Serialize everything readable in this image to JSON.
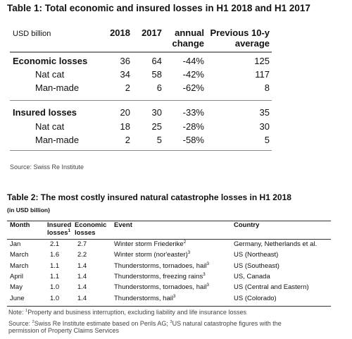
{
  "table1": {
    "title": "Table 1: Total economic and insured losses in H1 2018 and H1 2017",
    "header": [
      "USD billion",
      "2018",
      "2017",
      "annual change",
      "Previous 10-y average"
    ],
    "rows": [
      [
        "Economic losses",
        "36",
        "64",
        "-44%",
        "125"
      ],
      [
        "Nat cat",
        "34",
        "58",
        "-42%",
        "117"
      ],
      [
        "Man-made",
        "2",
        "6",
        "-62%",
        "8"
      ],
      [
        "Insured losses",
        "20",
        "30",
        "-33%",
        "35"
      ],
      [
        "Nat cat",
        "18",
        "25",
        "-28%",
        "30"
      ],
      [
        "Man-made",
        "2",
        "5",
        "-58%",
        "5"
      ]
    ],
    "source": "Source: Swiss Re Institute"
  },
  "table2": {
    "title": "Table 2: The most costly insured natural catastrophe losses in H1 2018",
    "subtitle": "(in USD billion)",
    "header": [
      "Month",
      {
        "text": "Insured losses",
        "sup": "1"
      },
      "Economic losses",
      "Event",
      "Country"
    ],
    "rows": [
      [
        "Jan",
        "2.1",
        "2.7",
        {
          "text": "Winter storm Friederike",
          "sup": "2"
        },
        "Germany, Netherlands et al."
      ],
      [
        "March",
        "1.6",
        "2.2",
        {
          "text": "Winter storm (nor'easter)",
          "sup": "3"
        },
        "US (Northeast)"
      ],
      [
        "March",
        "1.1",
        "1.4",
        {
          "text": "Thunderstorms, tornadoes, hail",
          "sup": "3"
        },
        "US (Southeast)"
      ],
      [
        "April",
        "1.1",
        "1.4",
        {
          "text": "Thunderstorms, freezing rains",
          "sup": "3"
        },
        "US, Canada"
      ],
      [
        "May",
        "1.0",
        "1.4",
        {
          "text": "Thunderstorms, tornadoes, hail",
          "sup": "3"
        },
        "US (Central and Eastern)"
      ],
      [
        "June",
        "1.0",
        "1.4",
        {
          "text": "Thunderstorms, hail",
          "sup": "3"
        },
        "US (Colorado)"
      ]
    ],
    "note": [
      {
        "text": "Note: "
      },
      {
        "sup": "1"
      },
      {
        "text": "Property and business interruption, excluding liability and life insurance losses"
      }
    ],
    "source": [
      {
        "text": "Source: "
      },
      {
        "sup": "2"
      },
      {
        "text": "Swiss Re Institute estimate based on Perils AG; "
      },
      {
        "sup": "3"
      },
      {
        "text": "US natural catastrophe figures with the permission of Property Claims Services"
      }
    ]
  }
}
